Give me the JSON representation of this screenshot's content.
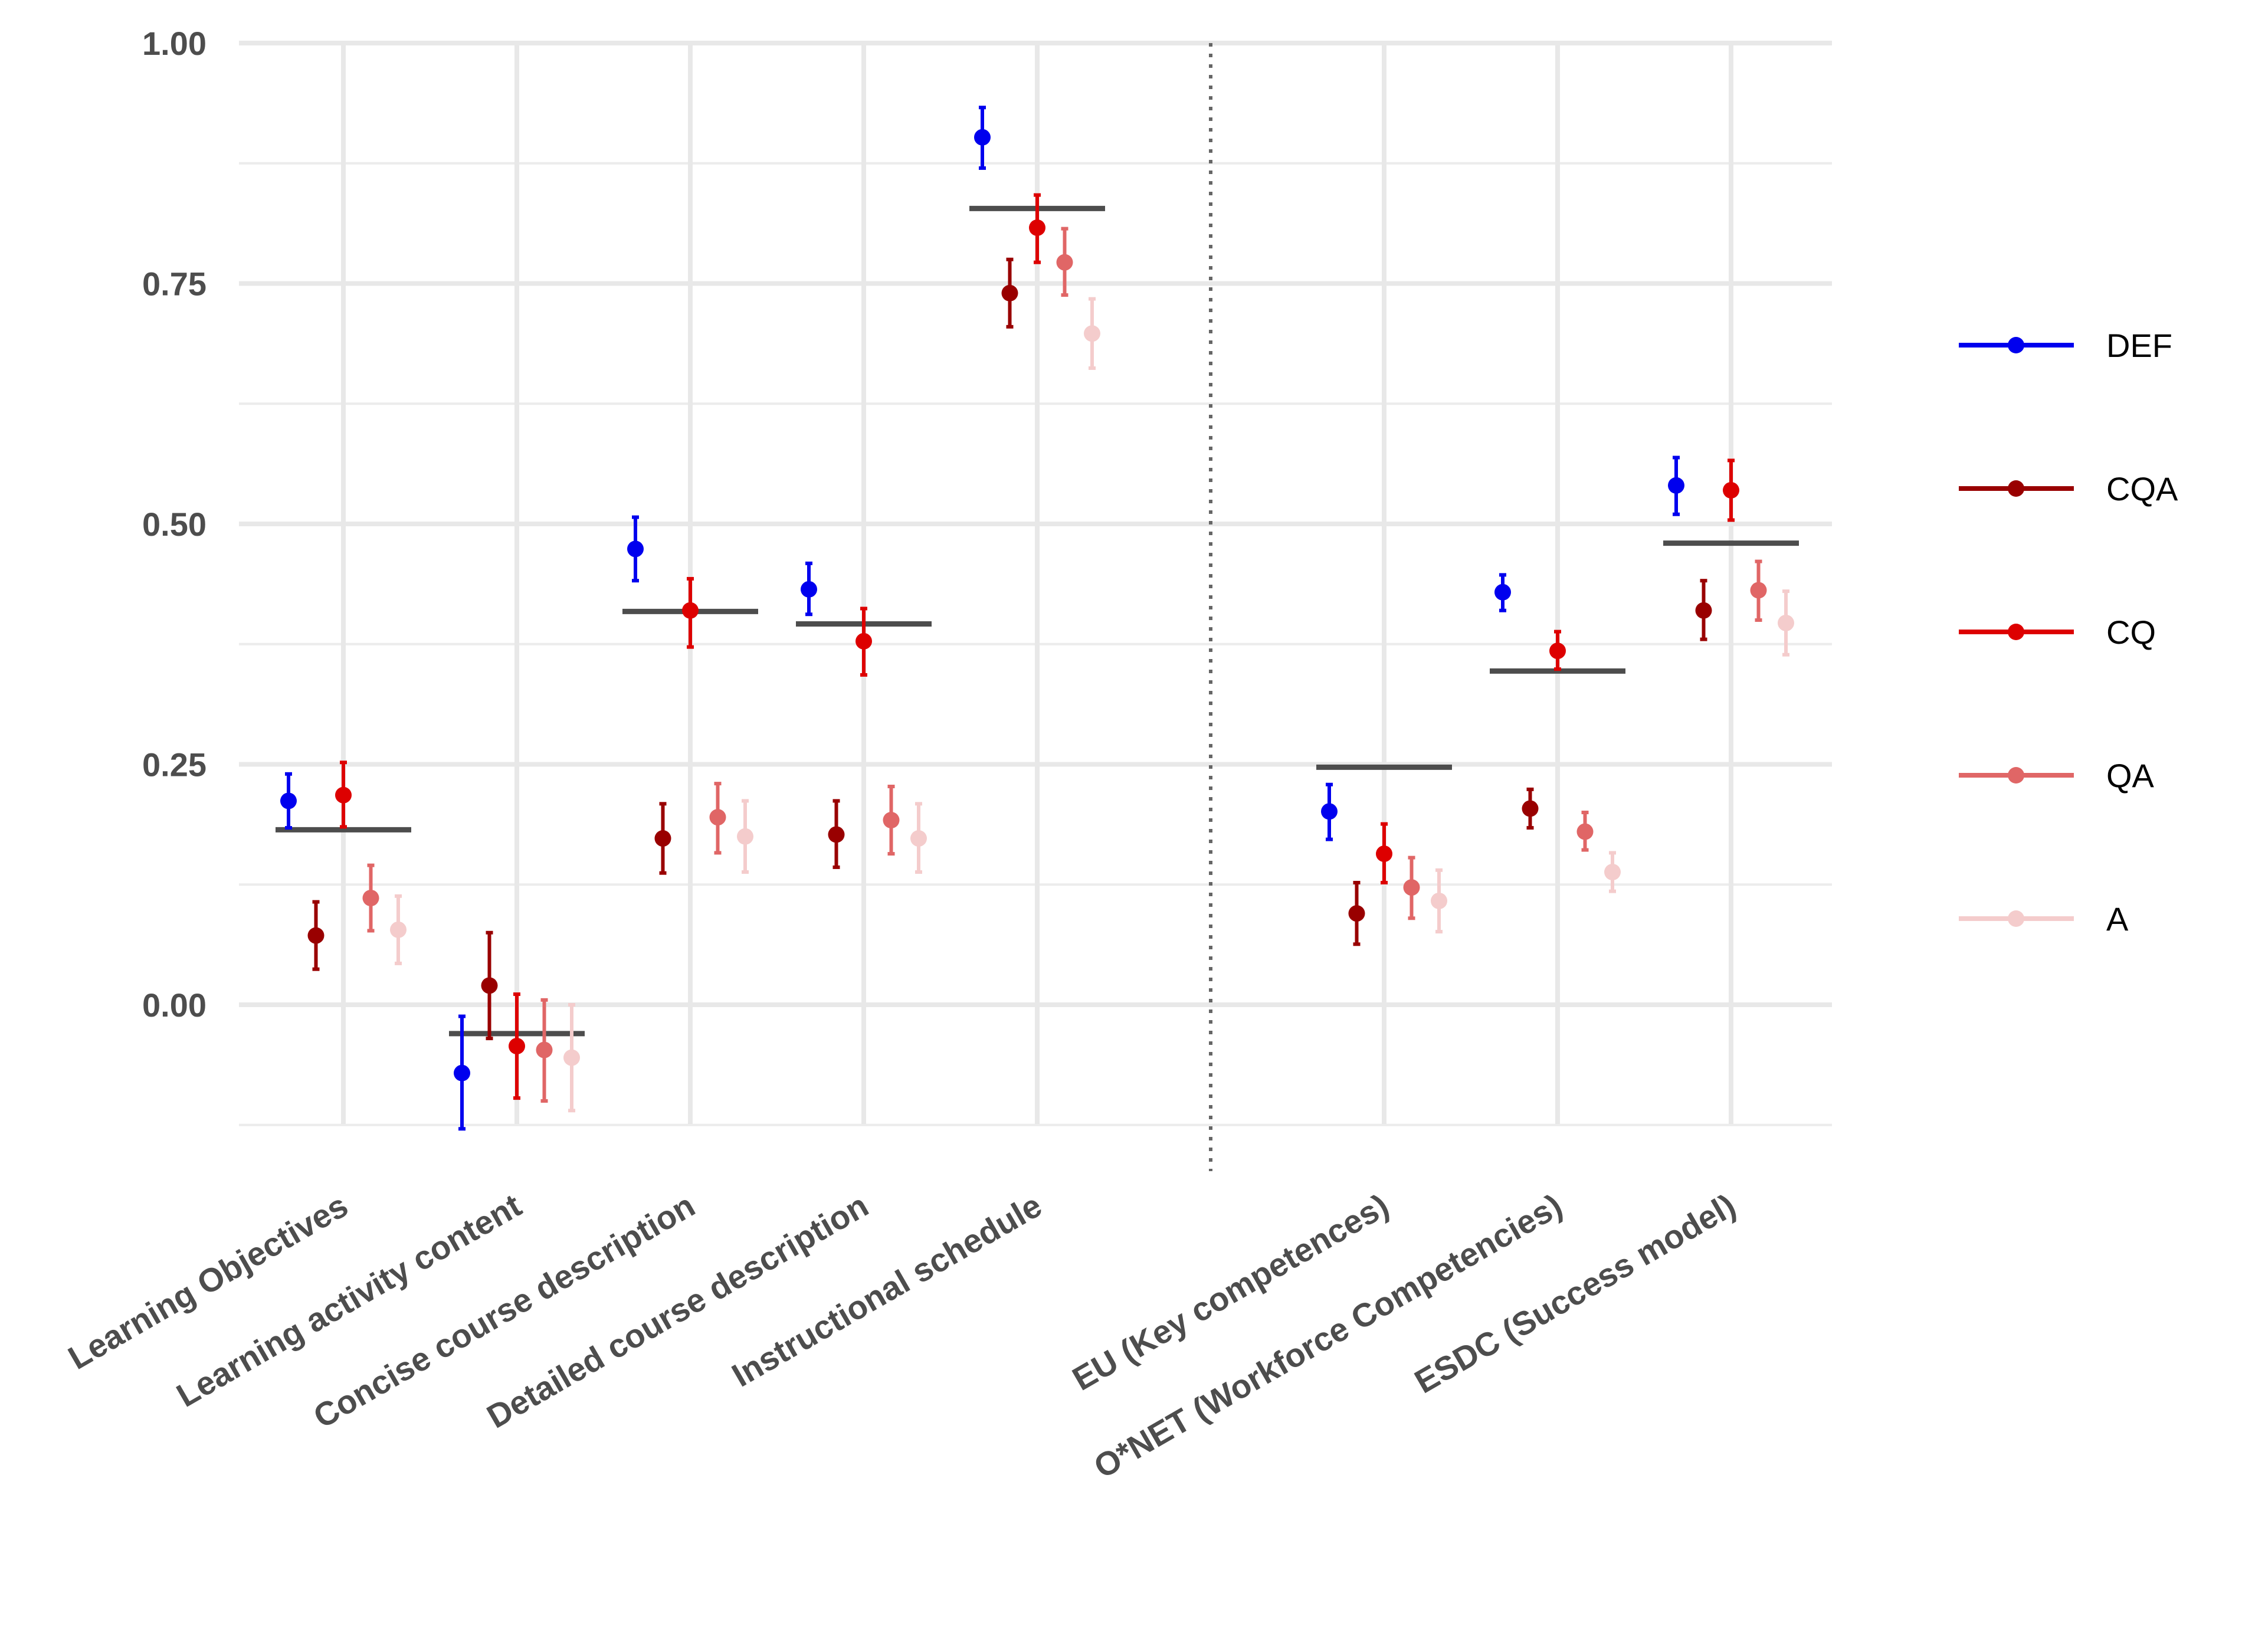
{
  "chart_data": {
    "type": "scatter",
    "title": "",
    "xlabel": "",
    "ylabel": "",
    "ylim": [
      -0.15,
      1.0
    ],
    "y_ticks": [
      "0.00",
      "0.25",
      "0.50",
      "0.75",
      "1.00"
    ],
    "categories": [
      "Learning Objectives",
      "Learning activity content",
      "Concise course description",
      "Detailed course description",
      "Instructional schedule",
      "EU (Key competences)",
      "O*NET (Workforce Competencies)",
      "ESDC (Success model)"
    ],
    "separator_after_category_index": 4,
    "reference_lines": [
      0.182,
      -0.03,
      0.409,
      0.396,
      0.828,
      0.247,
      0.347,
      0.48
    ],
    "series": [
      {
        "name": "DEF",
        "color": "#0000ee",
        "values": [
          0.212,
          -0.071,
          0.474,
          0.432,
          0.902,
          0.201,
          0.429,
          0.54
        ],
        "lower": [
          0.184,
          -0.129,
          0.441,
          0.406,
          0.87,
          0.172,
          0.41,
          0.51
        ],
        "upper": [
          0.24,
          -0.012,
          0.507,
          0.459,
          0.933,
          0.229,
          0.447,
          0.569
        ]
      },
      {
        "name": "CQA",
        "color": "#990000",
        "values": [
          0.072,
          0.02,
          0.173,
          0.177,
          0.74,
          0.095,
          0.204,
          0.41
        ],
        "lower": [
          0.037,
          -0.035,
          0.137,
          0.143,
          0.705,
          0.063,
          0.184,
          0.38
        ],
        "upper": [
          0.107,
          0.075,
          0.209,
          0.212,
          0.775,
          0.127,
          0.224,
          0.441
        ]
      },
      {
        "name": "CQ",
        "color": "#dd0000",
        "values": [
          0.218,
          -0.043,
          0.41,
          0.378,
          0.808,
          0.157,
          0.368,
          0.535
        ],
        "lower": [
          0.185,
          -0.097,
          0.372,
          0.343,
          0.772,
          0.127,
          0.349,
          0.504
        ],
        "upper": [
          0.252,
          0.011,
          0.443,
          0.412,
          0.842,
          0.188,
          0.388,
          0.566
        ]
      },
      {
        "name": "QA",
        "color": "#e06666",
        "values": [
          0.111,
          -0.047,
          0.195,
          0.192,
          0.772,
          0.122,
          0.18,
          0.431
        ],
        "lower": [
          0.077,
          -0.1,
          0.158,
          0.157,
          0.738,
          0.09,
          0.161,
          0.4
        ],
        "upper": [
          0.145,
          0.005,
          0.23,
          0.227,
          0.807,
          0.153,
          0.2,
          0.461
        ]
      },
      {
        "name": "A",
        "color": "#f4cccc",
        "values": [
          0.078,
          -0.055,
          0.175,
          0.173,
          0.698,
          0.108,
          0.138,
          0.397
        ],
        "lower": [
          0.043,
          -0.11,
          0.138,
          0.138,
          0.662,
          0.076,
          0.118,
          0.364
        ],
        "upper": [
          0.113,
          0.0,
          0.212,
          0.209,
          0.734,
          0.14,
          0.158,
          0.43
        ]
      }
    ],
    "legend_position": "right",
    "grid": true
  }
}
